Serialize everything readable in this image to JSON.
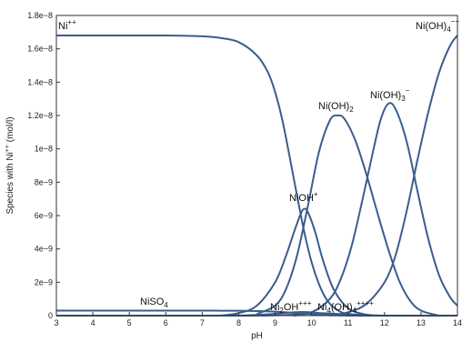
{
  "chart_data": {
    "type": "line",
    "xlabel": "pH",
    "ylabel": "Species with Ni",
    "ylabel_sup": "++",
    "ylabel_unit": "(mol/l)",
    "xlim": [
      3,
      14
    ],
    "ylim": [
      0,
      1.8e-08
    ],
    "x_ticks": [
      3,
      4,
      5,
      6,
      7,
      8,
      9,
      10,
      11,
      12,
      13,
      14
    ],
    "x_tick_labels": [
      "3",
      "4",
      "5",
      "6",
      "7",
      "8",
      "9",
      "10",
      "11",
      "12",
      "13",
      "14"
    ],
    "y_ticks": [
      0,
      2e-09,
      4e-09,
      6e-09,
      8e-09,
      1e-08,
      1.2e-08,
      1.4e-08,
      1.6e-08,
      1.8e-08
    ],
    "y_tick_labels": [
      "0",
      "2e−9",
      "4e−9",
      "6e−9",
      "8e−9",
      "1e−8",
      "1.2e−8",
      "1.4e−8",
      "1.6e−8",
      "1.8e−8"
    ],
    "grid": false,
    "line_color": "#3a5d8f",
    "series": [
      {
        "label": {
          "base": "Ni",
          "sup": "++",
          "sub": "",
          "tail": ""
        },
        "x": [
          3,
          4,
          5,
          6,
          7,
          7.5,
          8,
          8.5,
          8.8,
          9.0,
          9.2,
          9.4,
          9.6,
          9.8,
          10.0,
          10.2,
          10.4,
          10.6,
          10.8,
          11.0,
          11.5,
          12,
          13,
          14
        ],
        "y": [
          1.68e-08,
          1.68e-08,
          1.68e-08,
          1.68e-08,
          1.675e-08,
          1.665e-08,
          1.64e-08,
          1.56e-08,
          1.46e-08,
          1.34e-08,
          1.17e-08,
          9.5e-09,
          7.2e-09,
          5e-09,
          3.2e-09,
          1.9e-09,
          1e-09,
          5e-10,
          2.2e-10,
          1e-10,
          2e-11,
          0,
          0,
          0
        ]
      },
      {
        "label": {
          "base": "NiOH",
          "sup": "+",
          "sub": "",
          "tail": ""
        },
        "x": [
          7.5,
          8.0,
          8.5,
          9.0,
          9.3,
          9.5,
          9.7,
          9.8,
          9.9,
          10.1,
          10.3,
          10.6,
          11.0,
          11.5,
          12.0
        ],
        "y": [
          0,
          1.5e-10,
          6e-10,
          2e-09,
          3.6e-09,
          4.9e-09,
          6.1e-09,
          6.4e-09,
          6.2e-09,
          5e-09,
          3.4e-09,
          1.6e-09,
          4.5e-10,
          6e-11,
          0
        ]
      },
      {
        "label": {
          "base": "Ni(OH)",
          "sup": "",
          "sub": "2",
          "tail": ""
        },
        "x": [
          8.5,
          9.0,
          9.3,
          9.6,
          9.9,
          10.2,
          10.5,
          10.7,
          10.9,
          11.2,
          11.5,
          11.8,
          12.1,
          12.4,
          12.7,
          13.0,
          13.5
        ],
        "y": [
          1e-10,
          6e-10,
          1.6e-09,
          3.6e-09,
          6.6e-09,
          9.8e-09,
          1.17e-08,
          1.2e-08,
          1.18e-08,
          1.05e-08,
          8.5e-09,
          6.2e-09,
          4e-09,
          2.1e-09,
          9e-10,
          3e-10,
          0
        ]
      },
      {
        "label": {
          "base": "Ni(OH)",
          "sup": "−",
          "sub": "3",
          "tail": ""
        },
        "x": [
          9.5,
          10.0,
          10.5,
          10.8,
          11.1,
          11.4,
          11.7,
          11.9,
          12.1,
          12.3,
          12.6,
          12.9,
          13.2,
          13.5,
          13.8,
          14.0
        ],
        "y": [
          0,
          2e-10,
          1e-09,
          2.2e-09,
          4.2e-09,
          7e-09,
          1e-08,
          1.18e-08,
          1.27e-08,
          1.24e-08,
          1.05e-08,
          7.5e-09,
          4.6e-09,
          2.4e-09,
          1.1e-09,
          6e-10
        ]
      },
      {
        "label": {
          "base": "Ni(OH)",
          "sup": "−−",
          "sub": "4",
          "tail": ""
        },
        "x": [
          10.5,
          11.0,
          11.5,
          12.0,
          12.3,
          12.6,
          12.9,
          13.2,
          13.5,
          13.8,
          14.0
        ],
        "y": [
          0,
          2e-10,
          7e-10,
          2e-09,
          3.6e-09,
          6.2e-09,
          9.3e-09,
          1.22e-08,
          1.46e-08,
          1.62e-08,
          1.68e-08
        ]
      },
      {
        "label": {
          "base": "NiSO",
          "sup": "",
          "sub": "4",
          "tail": ""
        },
        "x": [
          3,
          4,
          5,
          6,
          7,
          7.5,
          8,
          8.5,
          9,
          9.5,
          10,
          10.5,
          11,
          12,
          14
        ],
        "y": [
          3e-10,
          3e-10,
          3e-10,
          3e-10,
          3e-10,
          2.95e-10,
          2.9e-10,
          2.7e-10,
          2.4e-10,
          1.6e-10,
          8e-11,
          3e-11,
          1e-11,
          0,
          0
        ]
      },
      {
        "label": {
          "base": "Ni",
          "sup": "+++",
          "sub": "2",
          "tail": "OH"
        },
        "x": [
          3,
          7,
          8,
          8.5,
          9,
          9.5,
          9.8,
          10.1,
          10.5,
          11,
          12,
          14
        ],
        "y": [
          0,
          0,
          1e-11,
          4e-11,
          1.1e-10,
          2e-10,
          2.2e-10,
          1.8e-10,
          9e-11,
          2e-11,
          0,
          0
        ]
      },
      {
        "label": {
          "base": "Ni",
          "sup": "++++",
          "sub": "4",
          "tail": "(OH)",
          "sub2": "4"
        },
        "x": [
          3,
          8,
          9,
          9.5,
          10,
          10.3,
          10.6,
          11,
          11.5,
          12,
          14
        ],
        "y": [
          0,
          0,
          2e-11,
          6e-11,
          1.2e-10,
          1.4e-10,
          1.2e-10,
          6e-11,
          1e-11,
          0,
          0
        ]
      }
    ]
  }
}
